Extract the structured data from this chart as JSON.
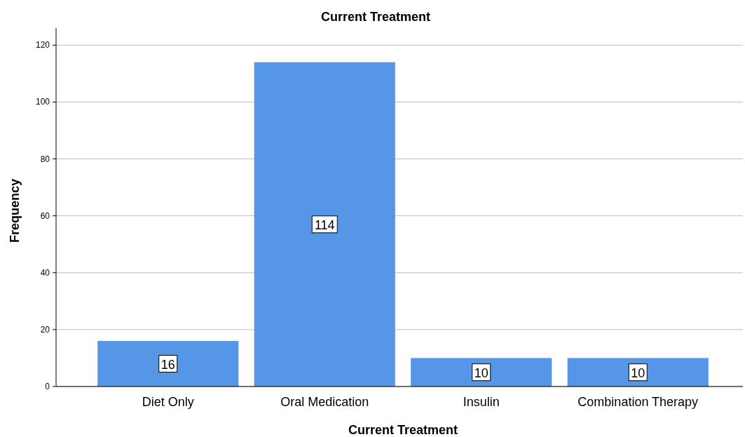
{
  "chart_data": {
    "type": "bar",
    "title": "Current Treatment",
    "xlabel": "Current Treatment",
    "ylabel": "Frequency",
    "categories": [
      "Diet Only",
      "Oral Medication",
      "Insulin",
      "Combination Therapy"
    ],
    "values": [
      16,
      114,
      10,
      10
    ],
    "color": "#5596e6",
    "ylim": [
      0,
      126
    ],
    "yticks": [
      0,
      20,
      40,
      60,
      80,
      100,
      120
    ],
    "grid": "y",
    "data_labels": true
  }
}
